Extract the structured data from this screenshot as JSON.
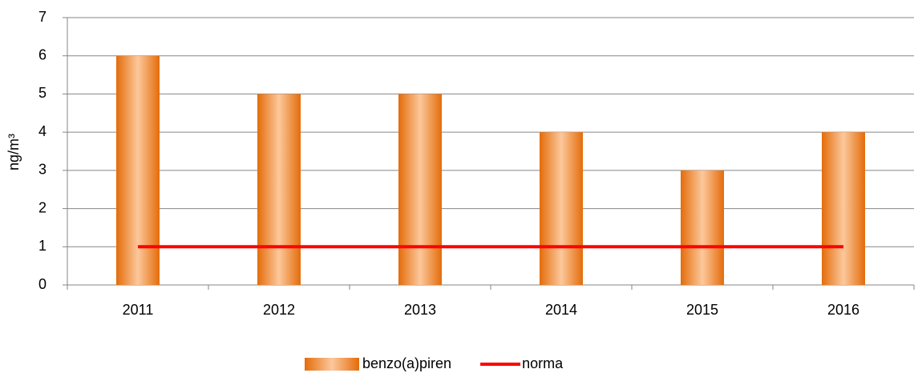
{
  "chart_data": {
    "type": "bar",
    "y_label": "ng/m³",
    "categories": [
      "2011",
      "2012",
      "2013",
      "2014",
      "2015",
      "2016"
    ],
    "series": [
      {
        "name": "benzo(a)piren",
        "color": "#e46c0a",
        "kind": "bar",
        "values": [
          6,
          5,
          5,
          4,
          3,
          4
        ]
      },
      {
        "name": "norma",
        "color": "#ff0000",
        "kind": "line",
        "values": [
          1,
          1,
          1,
          1,
          1,
          1
        ]
      }
    ],
    "ylim": [
      0,
      7
    ],
    "yticks": [
      0,
      1,
      2,
      3,
      4,
      5,
      6,
      7
    ],
    "grid": true,
    "legend": "bottom"
  }
}
